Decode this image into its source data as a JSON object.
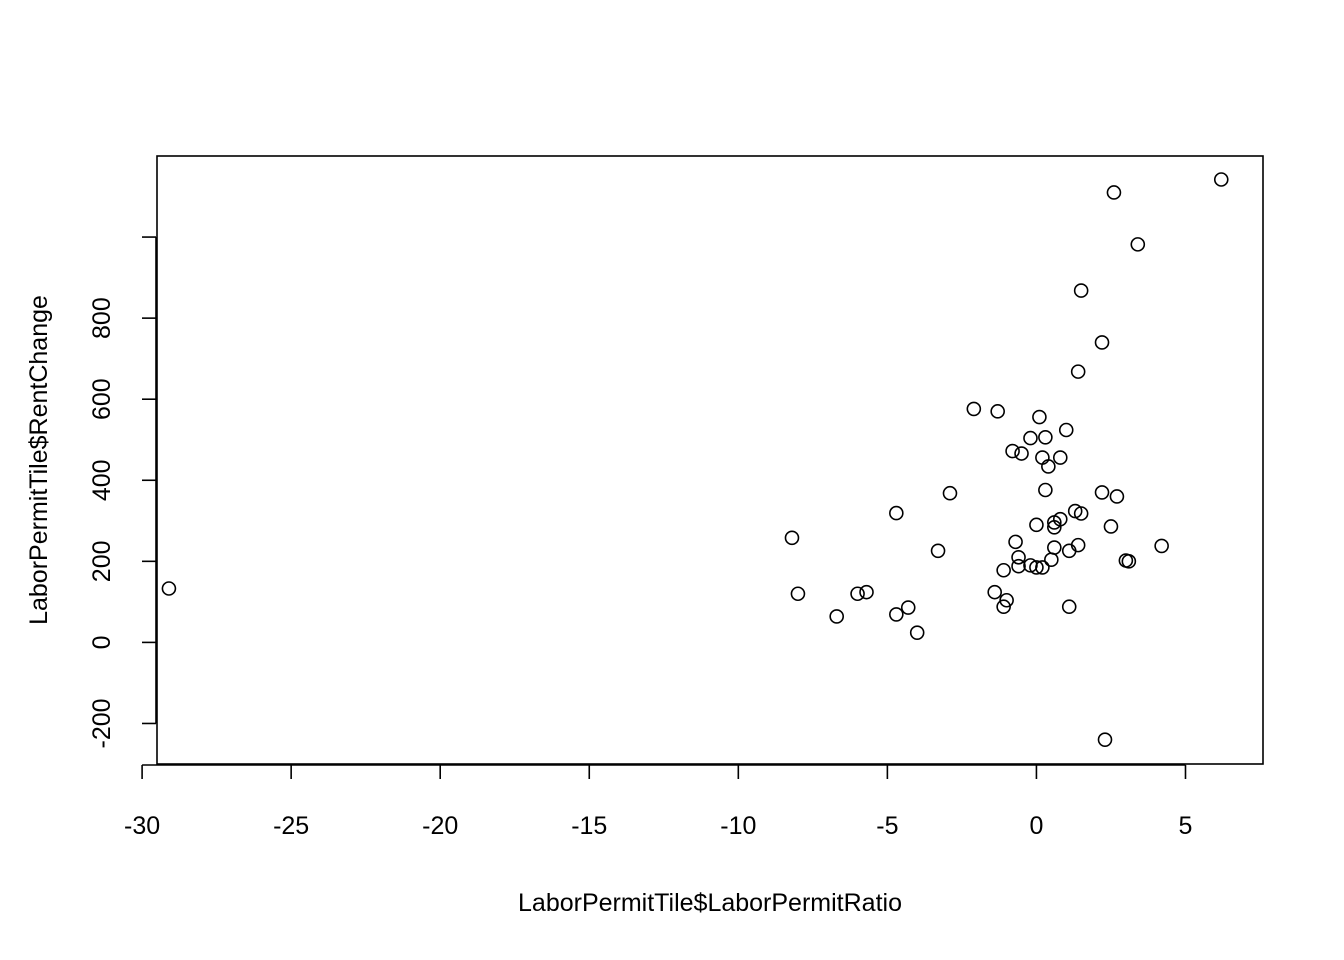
{
  "chart_data": {
    "type": "scatter",
    "title": "",
    "xlabel": "LaborPermitTile$LaborPermitRatio",
    "ylabel": "LaborPermitTile$RentChange",
    "xlim": [
      -29.5,
      7.6
    ],
    "ylim": [
      -300,
      1200
    ],
    "x_ticks": [
      -30,
      -25,
      -20,
      -15,
      -10,
      -5,
      0,
      5
    ],
    "x_tick_labels": [
      "-30",
      "-25",
      "-20",
      "-15",
      "-10",
      "-5",
      "0",
      "5"
    ],
    "y_ticks": [
      -200,
      0,
      200,
      400,
      600,
      800,
      1000
    ],
    "y_tick_labels": [
      "-200",
      "0",
      "200",
      "400",
      "600",
      "800",
      ""
    ],
    "grid": false,
    "marker": "open-circle",
    "color": "#000000",
    "points": [
      {
        "x": -29.1,
        "y": 133
      },
      {
        "x": -8.2,
        "y": 258
      },
      {
        "x": -8.0,
        "y": 120
      },
      {
        "x": -6.7,
        "y": 64
      },
      {
        "x": -6.0,
        "y": 120
      },
      {
        "x": -5.7,
        "y": 124
      },
      {
        "x": -4.7,
        "y": 319
      },
      {
        "x": -4.7,
        "y": 69
      },
      {
        "x": -4.3,
        "y": 86
      },
      {
        "x": -4.0,
        "y": 24
      },
      {
        "x": -3.3,
        "y": 226
      },
      {
        "x": -2.9,
        "y": 368
      },
      {
        "x": -2.1,
        "y": 576
      },
      {
        "x": -1.4,
        "y": 124
      },
      {
        "x": -1.3,
        "y": 570
      },
      {
        "x": -1.1,
        "y": 178
      },
      {
        "x": -1.1,
        "y": 88
      },
      {
        "x": -1.0,
        "y": 104
      },
      {
        "x": -0.8,
        "y": 472
      },
      {
        "x": -0.7,
        "y": 248
      },
      {
        "x": -0.6,
        "y": 188
      },
      {
        "x": -0.6,
        "y": 210
      },
      {
        "x": -0.5,
        "y": 466
      },
      {
        "x": -0.2,
        "y": 504
      },
      {
        "x": -0.2,
        "y": 190
      },
      {
        "x": 0.0,
        "y": 290
      },
      {
        "x": 0.0,
        "y": 185
      },
      {
        "x": 0.1,
        "y": 556
      },
      {
        "x": 0.2,
        "y": 456
      },
      {
        "x": 0.2,
        "y": 185
      },
      {
        "x": 0.3,
        "y": 506
      },
      {
        "x": 0.3,
        "y": 376
      },
      {
        "x": 0.4,
        "y": 434
      },
      {
        "x": 0.5,
        "y": 204
      },
      {
        "x": 0.6,
        "y": 296
      },
      {
        "x": 0.6,
        "y": 284
      },
      {
        "x": 0.6,
        "y": 234
      },
      {
        "x": 0.8,
        "y": 456
      },
      {
        "x": 0.8,
        "y": 304
      },
      {
        "x": 1.0,
        "y": 524
      },
      {
        "x": 1.1,
        "y": 88
      },
      {
        "x": 1.1,
        "y": 226
      },
      {
        "x": 1.3,
        "y": 324
      },
      {
        "x": 1.4,
        "y": 668
      },
      {
        "x": 1.4,
        "y": 240
      },
      {
        "x": 1.5,
        "y": 868
      },
      {
        "x": 1.5,
        "y": 318
      },
      {
        "x": 2.2,
        "y": 740
      },
      {
        "x": 2.2,
        "y": 370
      },
      {
        "x": 2.3,
        "y": -240
      },
      {
        "x": 2.5,
        "y": 286
      },
      {
        "x": 2.6,
        "y": 1110
      },
      {
        "x": 2.7,
        "y": 360
      },
      {
        "x": 3.0,
        "y": 202
      },
      {
        "x": 3.1,
        "y": 200
      },
      {
        "x": 3.4,
        "y": 982
      },
      {
        "x": 4.2,
        "y": 238
      },
      {
        "x": 6.2,
        "y": 1142
      }
    ]
  }
}
